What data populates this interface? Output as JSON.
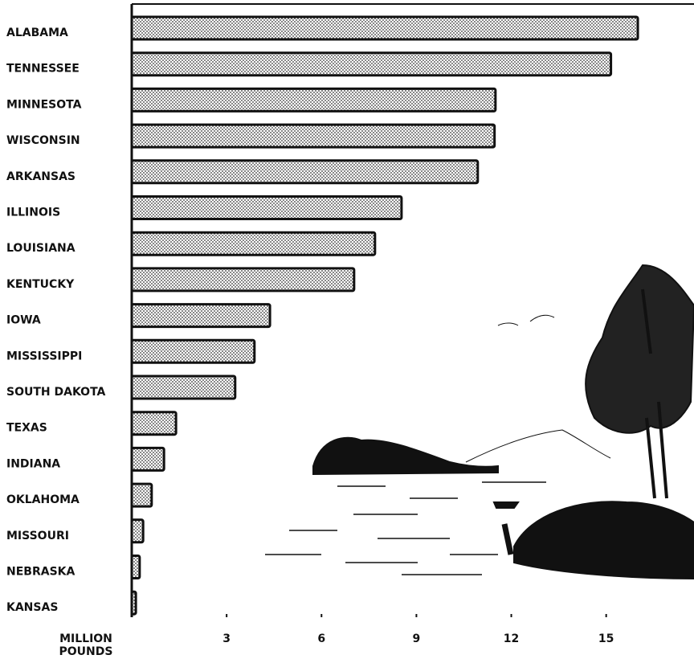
{
  "chart_data": {
    "type": "barh",
    "categories": [
      "ALABAMA",
      "TENNESSEE",
      "MINNESOTA",
      "WISCONSIN",
      "ARKANSAS",
      "ILLINOIS",
      "LOUISIANA",
      "KENTUCKY",
      "IOWA",
      "MISSISSIPPI",
      "SOUTH DAKOTA",
      "TEXAS",
      "INDIANA",
      "OKLAHOMA",
      "MISSOURI",
      "NEBRASKA",
      "KANSAS"
    ],
    "values": [
      16.0,
      15.15,
      11.5,
      11.47,
      10.94,
      8.53,
      7.69,
      7.03,
      4.37,
      3.88,
      3.27,
      1.4,
      1.02,
      0.63,
      0.36,
      0.25,
      0.13
    ],
    "x_label": "MILLION POUNDS",
    "xlim": [
      0,
      17.7
    ],
    "xticks": [
      3,
      6,
      9,
      12,
      15
    ],
    "color": "#bbbbbb"
  }
}
